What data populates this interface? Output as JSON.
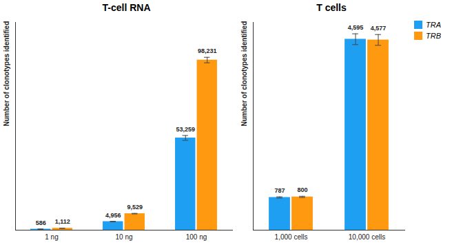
{
  "chart_data": [
    {
      "type": "bar",
      "title": "T-cell RNA",
      "y_label": "Number of clonotypes identified",
      "categories": [
        "1 ng",
        "10 ng",
        "100 ng"
      ],
      "series": [
        {
          "name": "TRA",
          "color": "#1e9ff2",
          "values": [
            586,
            4956,
            53259
          ],
          "value_labels": [
            "586",
            "4,956",
            "53,259"
          ],
          "errors": [
            60,
            150,
            1400
          ]
        },
        {
          "name": "TRB",
          "color": "#ff9a10",
          "values": [
            1112,
            9529,
            98231
          ],
          "value_labels": [
            "1,112",
            "9,529",
            "98,231"
          ],
          "errors": [
            80,
            150,
            1600
          ]
        }
      ],
      "ylim": [
        0,
        120000
      ],
      "tick_labels": "x",
      "data_labels": true
    },
    {
      "type": "bar",
      "title": "T cells",
      "y_label": "Number of clonotypes identified",
      "categories": [
        "1,000 cells",
        "10,000 cells"
      ],
      "series": [
        {
          "name": "TRA",
          "color": "#1e9ff2",
          "values": [
            787,
            4595
          ],
          "value_labels": [
            "787",
            "4,595"
          ],
          "errors": [
            15,
            130
          ]
        },
        {
          "name": "TRB",
          "color": "#ff9a10",
          "values": [
            800,
            4577
          ],
          "value_labels": [
            "800",
            "4,577"
          ],
          "errors": [
            15,
            130
          ]
        }
      ],
      "ylim": [
        0,
        5000
      ],
      "tick_labels": "x",
      "data_labels": true,
      "legend": "right"
    }
  ]
}
